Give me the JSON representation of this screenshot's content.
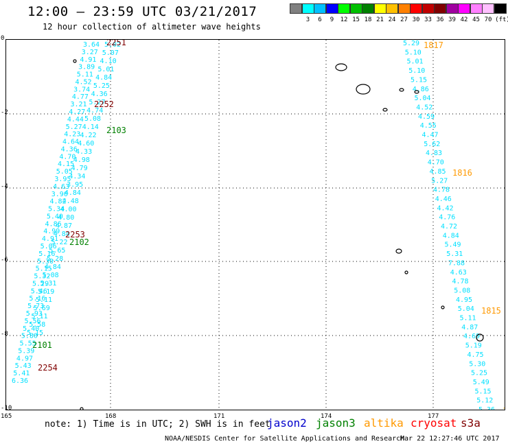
{
  "header": {
    "title": "12:00 – 23:59 UTC 03/21/2017",
    "subtitle": "12 hour collection of altimeter wave heights"
  },
  "color_scale": {
    "unit_label": "(ft)",
    "entries": [
      {
        "label": "",
        "color": "#808080"
      },
      {
        "label": "3",
        "color": "#00ffff"
      },
      {
        "label": "6",
        "color": "#00c0ff"
      },
      {
        "label": "9",
        "color": "#0000ff"
      },
      {
        "label": "12",
        "color": "#00ff00"
      },
      {
        "label": "15",
        "color": "#00c000"
      },
      {
        "label": "18",
        "color": "#008000"
      },
      {
        "label": "21",
        "color": "#ffff00"
      },
      {
        "label": "24",
        "color": "#ffc000"
      },
      {
        "label": "27",
        "color": "#ff8000"
      },
      {
        "label": "30",
        "color": "#ff0000"
      },
      {
        "label": "33",
        "color": "#c00000"
      },
      {
        "label": "36",
        "color": "#800000"
      },
      {
        "label": "39",
        "color": "#a000a0"
      },
      {
        "label": "42",
        "color": "#ff00ff"
      },
      {
        "label": "45",
        "color": "#ff80ff"
      },
      {
        "label": "70",
        "color": "#ffc0ff"
      },
      {
        "label": "",
        "color": "#000000"
      }
    ]
  },
  "map": {
    "x_ticks": [
      "165",
      "168",
      "171",
      "174",
      "177"
    ],
    "y_ticks": [
      "0",
      "-2",
      "-4",
      "-6",
      "-8",
      "-10"
    ],
    "track_color": "#00e0ff",
    "track_west": [
      "3.64",
      "3.27",
      "4.91",
      "3.89",
      "5.11",
      "4.52",
      "3.74",
      "4.77",
      "3.21",
      "4.27",
      "4.44",
      "5.27",
      "4.23",
      "4.64",
      "4.36",
      "4.70",
      "4.15",
      "5.05",
      "3.95",
      "4.63",
      "3.90",
      "4.82",
      "5.34",
      "5.40",
      "4.86",
      "4.99",
      "4.91",
      "5.06",
      "5.16",
      "5.30",
      "5.15",
      "5.32",
      "5.29",
      "5.46",
      "5.16",
      "5.73",
      "5.93",
      "5.56",
      "5.40",
      "5.80",
      "5.55",
      "5.39",
      "4.97",
      "5.43",
      "5.41",
      "6.36"
    ],
    "track_west_b": [
      "5.02",
      "5.07",
      "4.10",
      "5.01",
      "4.84",
      "5.25",
      "4.36",
      "5.27",
      "4.74",
      "5.08",
      "4.14",
      "4.22",
      "4.60",
      "4.33",
      "4.98",
      "4.79",
      "4.34",
      "3.95",
      "4.84",
      "4.48",
      "4.00",
      "4.80",
      "4.87",
      "4.84",
      "5.22",
      "5.65",
      "5.28",
      "4.84",
      "5.08",
      "5.31",
      "5.19",
      "5.11",
      "5.69",
      "5.11",
      "5.58",
      "5.15"
    ],
    "track_east": [
      "5.29",
      "5.10",
      "5.01",
      "5.10",
      "5.15",
      "4.86",
      "5.04",
      "4.52",
      "4.59",
      "4.55",
      "4.47",
      "5.62",
      "4.83",
      "4.70",
      "4.85",
      "5.27",
      "4.78",
      "4.46",
      "4.42",
      "4.76",
      "4.72",
      "4.84",
      "5.49",
      "5.31",
      "7.88",
      "4.63",
      "4.78",
      "5.08",
      "4.95",
      "5.04",
      "5.11",
      "4.87",
      "4.69",
      "5.19",
      "4.75",
      "5.30",
      "5.25",
      "5.49",
      "5.15",
      "5.12",
      "5.36"
    ],
    "time_labels": [
      {
        "text": "2251",
        "color": "#800000"
      },
      {
        "text": "2252",
        "color": "#800000"
      },
      {
        "text": "2103",
        "color": "#008000"
      },
      {
        "text": "2253",
        "color": "#800000"
      },
      {
        "text": "2102",
        "color": "#008000"
      },
      {
        "text": "2101",
        "color": "#008000"
      },
      {
        "text": "2254",
        "color": "#800000"
      },
      {
        "text": "1817",
        "color": "#ff9900"
      },
      {
        "text": "1816",
        "color": "#ff9900"
      },
      {
        "text": "1815",
        "color": "#ff9900"
      },
      {
        "text": "1",
        "color": "#ff9900"
      }
    ]
  },
  "footer": {
    "note": "note: 1) Time is in UTC; 2) SWH is in feet",
    "satellites": [
      {
        "name": "jason2",
        "color": "#0000cc"
      },
      {
        "name": "jason3",
        "color": "#008000"
      },
      {
        "name": "altika",
        "color": "#ff9900"
      },
      {
        "name": "cryosat",
        "color": "#ff0000"
      },
      {
        "name": "s3a",
        "color": "#800000"
      }
    ],
    "credit": "NOAA/NESDIS Center for Satellite Applications and Research",
    "timestamp": "Mar 22 12:27:46 UTC 2017"
  }
}
